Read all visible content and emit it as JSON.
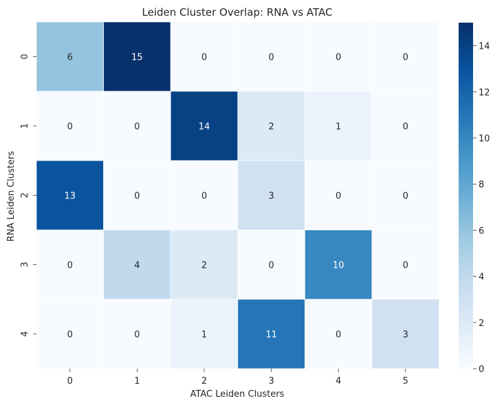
{
  "chart_data": {
    "type": "heatmap",
    "title": "Leiden Cluster Overlap: RNA vs ATAC",
    "xlabel": "ATAC Leiden Clusters",
    "ylabel": "RNA Leiden Clusters",
    "x_categories": [
      "0",
      "1",
      "2",
      "3",
      "4",
      "5"
    ],
    "y_categories": [
      "0",
      "1",
      "2",
      "3",
      "4"
    ],
    "values": [
      [
        6,
        15,
        0,
        0,
        0,
        0
      ],
      [
        0,
        0,
        14,
        2,
        1,
        0
      ],
      [
        13,
        0,
        0,
        3,
        0,
        0
      ],
      [
        0,
        4,
        2,
        0,
        10,
        0
      ],
      [
        0,
        0,
        1,
        11,
        0,
        3
      ]
    ],
    "annotations": true,
    "colormap": "Blues",
    "vmin": 0,
    "vmax": 15,
    "colorbar_ticks": [
      "0",
      "2",
      "4",
      "6",
      "8",
      "10",
      "12",
      "14"
    ],
    "grid": false
  }
}
